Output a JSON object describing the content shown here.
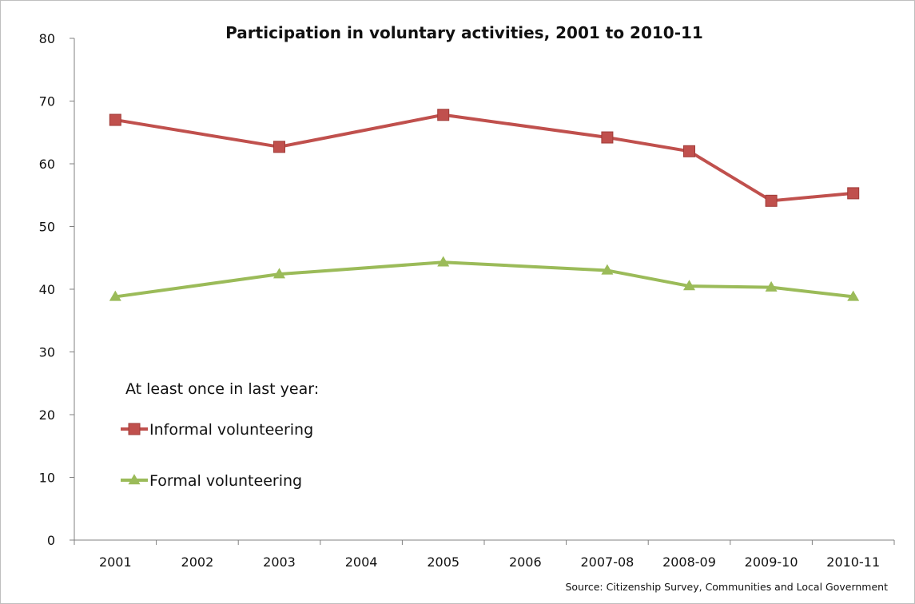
{
  "chart_data": {
    "type": "line",
    "title": "Participation in voluntary activities, 2001 to 2010-11",
    "xlabel": "",
    "ylabel": "",
    "categories": [
      "2001",
      "2002",
      "2003",
      "2004",
      "2005",
      "2006",
      "2007-08",
      "2008-09",
      "2009-10",
      "2010-11"
    ],
    "ylim": [
      0,
      80
    ],
    "yticks": [
      "0",
      "10",
      "20",
      "30",
      "40",
      "50",
      "60",
      "70",
      "80"
    ],
    "grid": false,
    "legend": {
      "position": "bottom-left",
      "heading": "At least once in last year:"
    },
    "series": [
      {
        "name": "Informal volunteering",
        "color": "#c0504d",
        "marker": "square",
        "values": [
          67,
          null,
          62.7,
          null,
          67.8,
          null,
          64.2,
          62,
          54.1,
          55.3
        ]
      },
      {
        "name": "Formal volunteering",
        "color": "#9bbb59",
        "marker": "triangle",
        "values": [
          38.8,
          null,
          42.4,
          null,
          44.3,
          null,
          43,
          40.5,
          40.3,
          38.8
        ]
      }
    ],
    "source": "Source: Citizenship Survey, Communities and Local Government"
  }
}
